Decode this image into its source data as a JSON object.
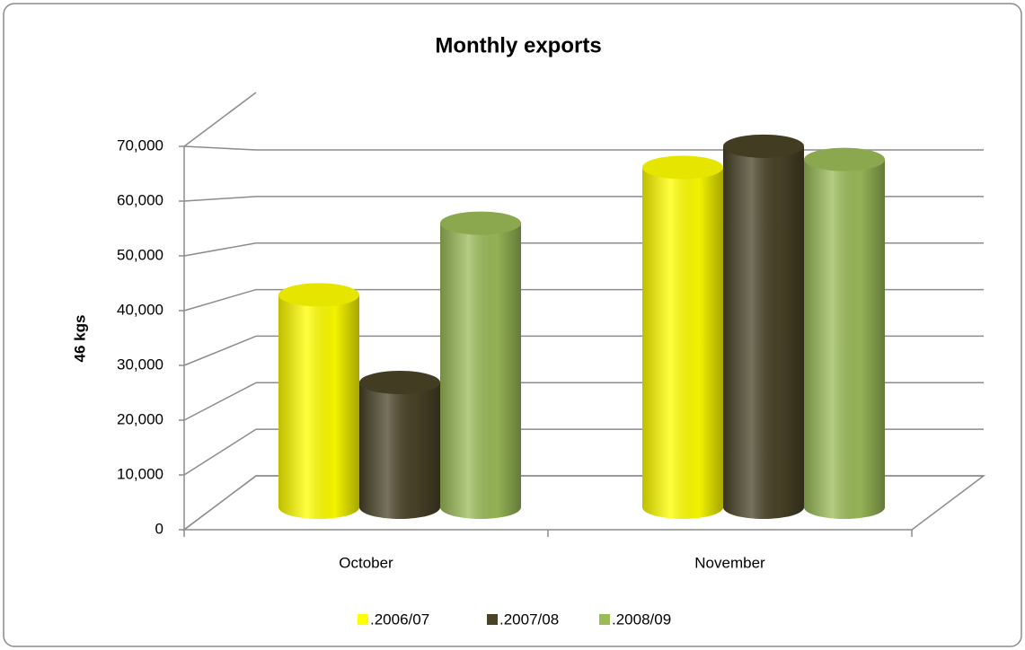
{
  "chart_data": {
    "type": "bar3d",
    "title": "Monthly exports",
    "y_label": "46 kgs",
    "categories": [
      "October",
      "November"
    ],
    "series": [
      {
        "name": ".2006/07",
        "color": "#ffff00",
        "values": [
          40000,
          64000
        ]
      },
      {
        "name": ".2007/08",
        "color": "#4a4328",
        "values": [
          23500,
          68000
        ]
      },
      {
        "name": ".2008/09",
        "color": "#9bbb59",
        "values": [
          53500,
          65500
        ]
      }
    ],
    "ylim": [
      0,
      70000
    ],
    "yticks": [
      {
        "value": 0,
        "label": "0"
      },
      {
        "value": 10000,
        "label": "10,000"
      },
      {
        "value": 20000,
        "label": "20,000"
      },
      {
        "value": 30000,
        "label": "30,000"
      },
      {
        "value": 40000,
        "label": "40,000"
      },
      {
        "value": 50000,
        "label": "50,000"
      },
      {
        "value": 60000,
        "label": "60,000"
      },
      {
        "value": 70000,
        "label": "70,000"
      }
    ],
    "grid": true,
    "legend": "bottom"
  }
}
